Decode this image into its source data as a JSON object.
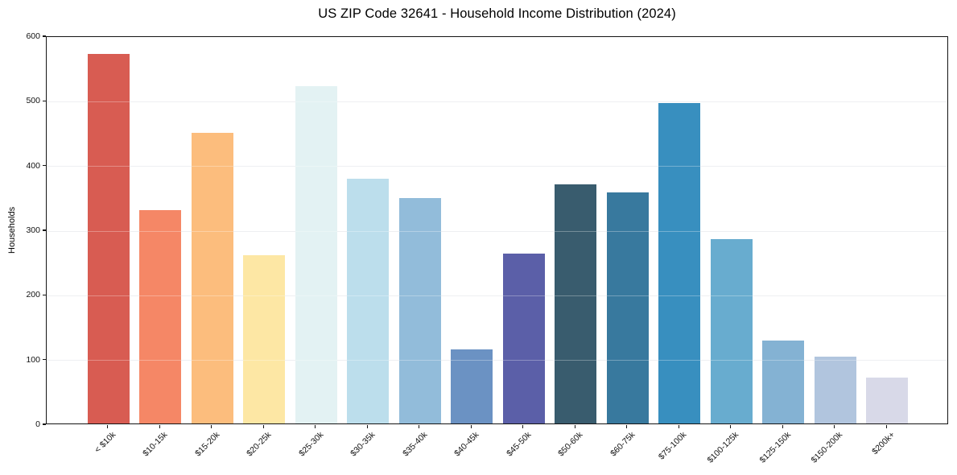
{
  "title": "US ZIP Code 32641 - Household Income Distribution (2024)",
  "chart_data": {
    "type": "bar",
    "title": "US ZIP Code 32641 - Household Income Distribution (2024)",
    "xlabel": "",
    "ylabel": "Households",
    "categories": [
      "< $10k",
      "$10-15k",
      "$15-20k",
      "$20-25k",
      "$25-30k",
      "$30-35k",
      "$35-40k",
      "$40-45k",
      "$45-50k",
      "$50-60k",
      "$60-75k",
      "$75-100k",
      "$100-125k",
      "$125-150k",
      "$150-200k",
      "$200k+"
    ],
    "values": [
      572,
      330,
      450,
      260,
      521,
      378,
      349,
      115,
      263,
      370,
      357,
      495,
      285,
      128,
      103,
      71
    ],
    "bar_colors": [
      "#d85c52",
      "#f58766",
      "#fcbd7d",
      "#fde7a4",
      "#e3f2f3",
      "#bcdeec",
      "#92bcda",
      "#6b92c3",
      "#5b5fa8",
      "#395c6e",
      "#38799e",
      "#388fbf",
      "#68accf",
      "#84b2d3",
      "#b1c5de",
      "#d8d9e8"
    ],
    "yticks": [
      0,
      100,
      200,
      300,
      400,
      500,
      600
    ],
    "ylim": [
      0,
      600
    ],
    "grid": "horizontal",
    "grid_color": "#e7e8ec",
    "legend": "none",
    "background": "#ffffff",
    "spine_color": "#141414",
    "text_color": "#111111",
    "xtick_rotation_deg": 45
  }
}
